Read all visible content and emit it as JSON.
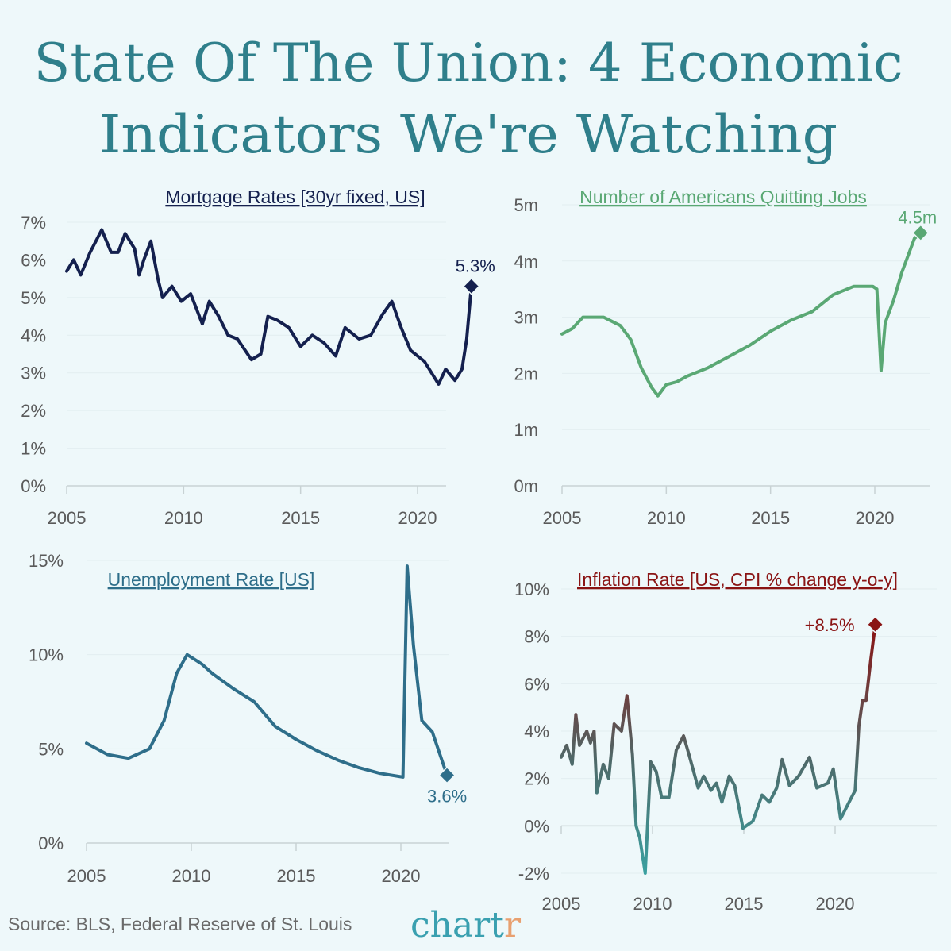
{
  "header": {
    "title_line1": "State Of The Union: 4 Economic",
    "title_line2": "Indicators We're Watching"
  },
  "footer": {
    "source": "Source: BLS, Federal Reserve of St. Louis",
    "logo_main": "chart",
    "logo_end": "r"
  },
  "colors": {
    "background": "#eef8fa",
    "title": "#2f7f8b",
    "mortgage": "#14204e",
    "quits": "#5aa874",
    "unemployment": "#2e6e8a",
    "inflation_high": "#8a1414",
    "inflation_low": "#3aa0a0",
    "logo_teal": "#3aa0b0",
    "logo_orange": "#e8a070"
  },
  "chart_data": [
    {
      "id": "mortgage",
      "type": "line",
      "title": "Mortgage Rates [30yr fixed, US]",
      "ylim": [
        0,
        7
      ],
      "yticks": [
        0,
        1,
        2,
        3,
        4,
        5,
        6,
        7
      ],
      "ytick_labels": [
        "0%",
        "1%",
        "2%",
        "3%",
        "4%",
        "5%",
        "6%",
        "7%"
      ],
      "xticks": [
        2005,
        2010,
        2015,
        2020
      ],
      "xtick_labels": [
        "2005",
        "2010",
        "2015",
        "2020"
      ],
      "grid": true,
      "end_label": "5.3%",
      "x": [
        2005,
        2005.3,
        2005.6,
        2006,
        2006.5,
        2006.9,
        2007.2,
        2007.5,
        2007.9,
        2008.1,
        2008.3,
        2008.6,
        2008.9,
        2009.1,
        2009.5,
        2009.9,
        2010.3,
        2010.8,
        2011.1,
        2011.5,
        2011.9,
        2012.3,
        2012.9,
        2013.3,
        2013.6,
        2014,
        2014.5,
        2015,
        2015.5,
        2016,
        2016.5,
        2016.9,
        2017.5,
        2018,
        2018.5,
        2018.9,
        2019.3,
        2019.7,
        2020.3,
        2020.9,
        2021.2,
        2021.6,
        2021.9,
        2022.1,
        2022.3
      ],
      "y": [
        5.7,
        6.0,
        5.6,
        6.2,
        6.8,
        6.2,
        6.2,
        6.7,
        6.3,
        5.6,
        6.0,
        6.5,
        5.5,
        5.0,
        5.3,
        4.9,
        5.1,
        4.3,
        4.9,
        4.5,
        4.0,
        3.9,
        3.35,
        3.5,
        4.5,
        4.4,
        4.2,
        3.7,
        4.0,
        3.8,
        3.45,
        4.2,
        3.9,
        4.0,
        4.55,
        4.9,
        4.2,
        3.6,
        3.3,
        2.7,
        3.1,
        2.8,
        3.1,
        3.9,
        5.3
      ]
    },
    {
      "id": "quits",
      "type": "line",
      "title": "Number of Americans Quitting Jobs",
      "ylim": [
        0,
        5
      ],
      "yticks": [
        0,
        1,
        2,
        3,
        4,
        5
      ],
      "ytick_labels": [
        "0m",
        "1m",
        "2m",
        "3m",
        "4m",
        "5m"
      ],
      "xticks": [
        2005,
        2010,
        2015,
        2020
      ],
      "xtick_labels": [
        "2005",
        "2010",
        "2015",
        "2020"
      ],
      "grid": true,
      "end_label": "4.5m",
      "x": [
        2005,
        2005.5,
        2006,
        2007,
        2007.8,
        2008.3,
        2008.8,
        2009.3,
        2009.6,
        2010,
        2010.5,
        2011,
        2012,
        2013,
        2014,
        2015,
        2016,
        2017,
        2018,
        2019,
        2019.9,
        2020.1,
        2020.3,
        2020.5,
        2020.9,
        2021.3,
        2021.5,
        2021.9,
        2022.2
      ],
      "y": [
        2.7,
        2.8,
        3.0,
        3.0,
        2.85,
        2.6,
        2.1,
        1.75,
        1.6,
        1.8,
        1.85,
        1.95,
        2.1,
        2.3,
        2.5,
        2.75,
        2.95,
        3.1,
        3.4,
        3.55,
        3.55,
        3.5,
        2.05,
        2.9,
        3.3,
        3.8,
        4.0,
        4.4,
        4.5
      ]
    },
    {
      "id": "unemployment",
      "type": "line",
      "title": "Unemployment Rate [US]",
      "ylim": [
        0,
        15
      ],
      "yticks": [
        0,
        5,
        10,
        15
      ],
      "ytick_labels": [
        "0%",
        "5%",
        "10%",
        "15%"
      ],
      "xticks": [
        2005,
        2010,
        2015,
        2020
      ],
      "xtick_labels": [
        "2005",
        "2010",
        "2015",
        "2020"
      ],
      "grid": true,
      "end_label": "3.6%",
      "x": [
        2005,
        2006,
        2007,
        2008,
        2008.7,
        2009.3,
        2009.8,
        2010.5,
        2011,
        2012,
        2013,
        2014,
        2015,
        2016,
        2017,
        2018,
        2019,
        2020.1,
        2020.3,
        2020.6,
        2021,
        2021.5,
        2022.2
      ],
      "y": [
        5.3,
        4.7,
        4.5,
        5.0,
        6.5,
        9.0,
        10.0,
        9.5,
        9.0,
        8.2,
        7.5,
        6.2,
        5.5,
        4.9,
        4.4,
        4.0,
        3.7,
        3.5,
        14.7,
        10.5,
        6.5,
        5.9,
        3.6
      ]
    },
    {
      "id": "inflation",
      "type": "line",
      "title": "Inflation Rate [US, CPI % change y-o-y]",
      "ylim": [
        -2,
        10
      ],
      "yticks": [
        -2,
        0,
        2,
        4,
        6,
        8,
        10
      ],
      "ytick_labels": [
        "-2%",
        "0%",
        "2%",
        "4%",
        "6%",
        "8%",
        "10%"
      ],
      "xticks": [
        2005,
        2010,
        2015,
        2020
      ],
      "xtick_labels": [
        "2005",
        "2010",
        "2015",
        "2020"
      ],
      "grid": true,
      "end_label": "+8.5%",
      "x": [
        2005,
        2005.3,
        2005.6,
        2005.8,
        2006,
        2006.4,
        2006.6,
        2006.8,
        2006.95,
        2007.3,
        2007.6,
        2007.9,
        2008.3,
        2008.6,
        2008.9,
        2009.1,
        2009.3,
        2009.6,
        2009.9,
        2010.2,
        2010.5,
        2010.9,
        2011.3,
        2011.7,
        2012,
        2012.5,
        2012.8,
        2013.2,
        2013.5,
        2013.8,
        2014.2,
        2014.5,
        2014.95,
        2015.5,
        2016,
        2016.4,
        2016.8,
        2017.1,
        2017.5,
        2018,
        2018.6,
        2019,
        2019.6,
        2019.9,
        2020.3,
        2020.9,
        2021.1,
        2021.3,
        2021.5,
        2021.7,
        2021.95,
        2022.2
      ],
      "y": [
        2.9,
        3.4,
        2.6,
        4.7,
        3.4,
        4.0,
        3.5,
        4.0,
        1.4,
        2.6,
        2.0,
        4.3,
        4.0,
        5.5,
        3.0,
        0.0,
        -0.5,
        -2.0,
        2.7,
        2.3,
        1.2,
        1.2,
        3.2,
        3.8,
        3.0,
        1.6,
        2.1,
        1.5,
        1.8,
        1.0,
        2.1,
        1.7,
        -0.1,
        0.2,
        1.3,
        1.0,
        1.6,
        2.8,
        1.7,
        2.1,
        2.9,
        1.6,
        1.8,
        2.4,
        0.3,
        1.2,
        1.5,
        4.2,
        5.3,
        5.3,
        7.0,
        8.5
      ]
    }
  ]
}
